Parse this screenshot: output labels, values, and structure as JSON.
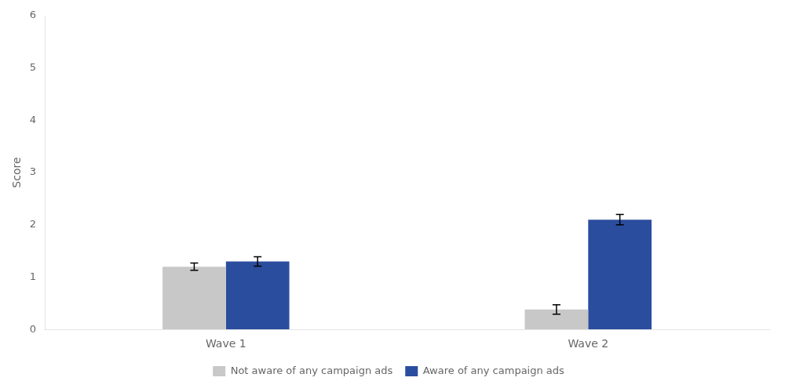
{
  "chart_data": {
    "type": "bar",
    "categories": [
      "Wave 1",
      "Wave 2"
    ],
    "series": [
      {
        "name": "Not aware of any campaign ads",
        "color": "#c8c8c8",
        "values": [
          1.2,
          0.38
        ],
        "errors": [
          0.07,
          0.09
        ]
      },
      {
        "name": "Aware of any campaign ads",
        "color": "#2b4d9e",
        "values": [
          1.3,
          2.1
        ],
        "errors": [
          0.09,
          0.1
        ]
      }
    ],
    "ylabel": "Score",
    "ylim": [
      0,
      6
    ],
    "yticks": [
      0,
      1,
      2,
      3,
      4,
      5,
      6
    ],
    "grid": false,
    "legend": "bottom"
  }
}
